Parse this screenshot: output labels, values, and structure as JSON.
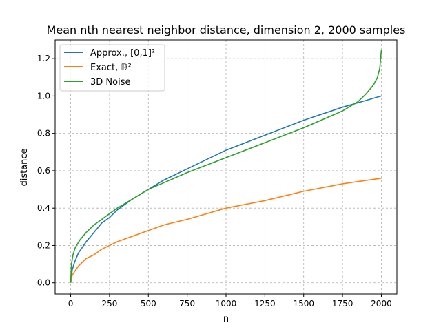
{
  "chart_data": {
    "type": "line",
    "title": "Mean nth nearest neighbor distance, dimension 2, 2000 samples",
    "xlabel": "n",
    "ylabel": "distance",
    "xlim": [
      -100,
      2100
    ],
    "ylim": [
      -0.06,
      1.3
    ],
    "xticks": [
      0,
      250,
      500,
      750,
      1000,
      1250,
      1500,
      1750,
      2000
    ],
    "yticks": [
      0.0,
      0.2,
      0.4,
      0.6,
      0.8,
      1.0,
      1.2
    ],
    "ytick_labels": [
      "0.0",
      "0.2",
      "0.4",
      "0.6",
      "0.8",
      "1.0",
      "1.2"
    ],
    "grid": true,
    "legend_position": "top-left",
    "series": [
      {
        "name": "Approx., [0,1]²",
        "color": "#1f77b4",
        "x": [
          0,
          10,
          25,
          50,
          100,
          150,
          200,
          250,
          300,
          400,
          500,
          600,
          750,
          1000,
          1250,
          1500,
          1750,
          2000
        ],
        "y": [
          0.0,
          0.07,
          0.11,
          0.16,
          0.22,
          0.27,
          0.32,
          0.35,
          0.39,
          0.45,
          0.5,
          0.55,
          0.61,
          0.71,
          0.79,
          0.87,
          0.94,
          1.0
        ]
      },
      {
        "name": "Exact, ℝ²",
        "color": "#ff7f0e",
        "x": [
          0,
          10,
          25,
          50,
          100,
          150,
          200,
          250,
          300,
          400,
          500,
          600,
          750,
          1000,
          1250,
          1500,
          1750,
          2000
        ],
        "y": [
          0.0,
          0.04,
          0.06,
          0.09,
          0.13,
          0.15,
          0.18,
          0.2,
          0.22,
          0.25,
          0.28,
          0.31,
          0.34,
          0.4,
          0.44,
          0.49,
          0.53,
          0.56
        ]
      },
      {
        "name": "3D Noise",
        "color": "#2ca02c",
        "x": [
          0,
          5,
          15,
          30,
          60,
          100,
          150,
          200,
          250,
          300,
          400,
          500,
          750,
          1000,
          1250,
          1500,
          1750,
          1850,
          1900,
          1950,
          1975,
          1990,
          2000
        ],
        "y": [
          0.0,
          0.1,
          0.15,
          0.19,
          0.23,
          0.27,
          0.31,
          0.34,
          0.37,
          0.4,
          0.45,
          0.5,
          0.59,
          0.67,
          0.75,
          0.83,
          0.92,
          0.97,
          1.01,
          1.06,
          1.1,
          1.15,
          1.245
        ]
      }
    ]
  }
}
